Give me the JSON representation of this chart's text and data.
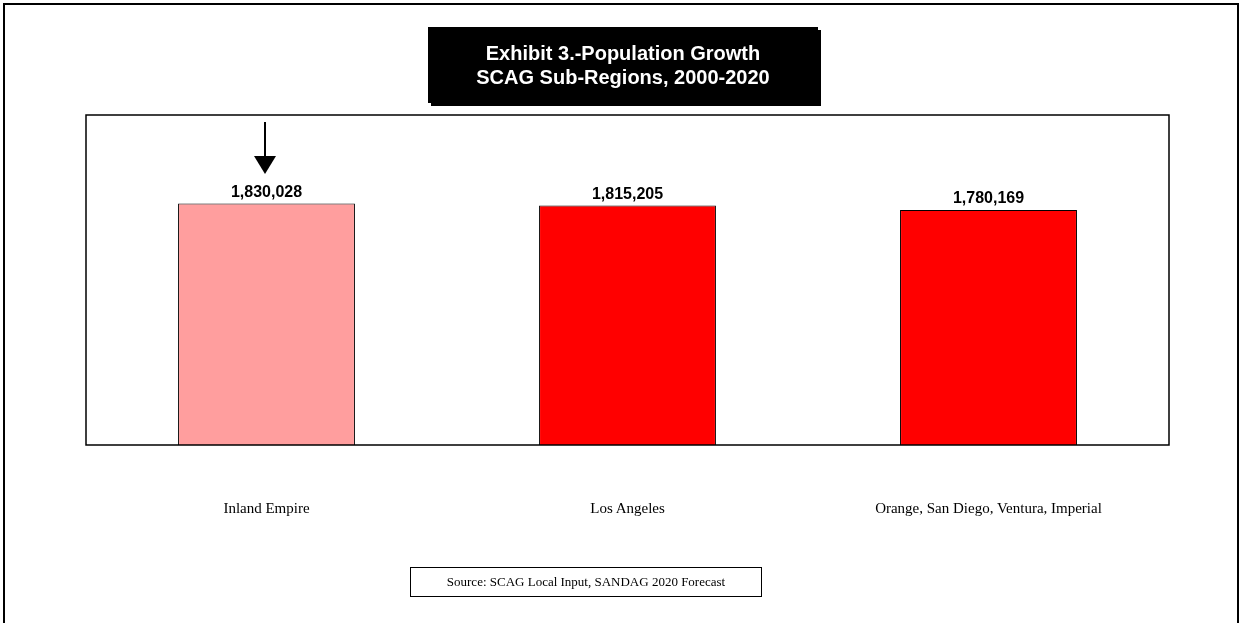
{
  "chart_data": {
    "type": "bar",
    "title": "Exhibit 3.-Population Growth\nSCAG Sub-Regions, 2000-2020",
    "categories": [
      "Inland Empire",
      "Los Angeles",
      "Orange, San Diego, Ventura, Imperial"
    ],
    "values": [
      1830028,
      1815205,
      1780169
    ],
    "colors": [
      "#ff9e9e",
      "#ff0000",
      "#ff0000"
    ],
    "value_labels": [
      "1,830,028",
      "1,815,205",
      "1,780,169"
    ],
    "grid": false,
    "legend": false,
    "annotations": [
      "Source: SCAG Local Input, SANDAG 2020 Forecast"
    ]
  }
}
